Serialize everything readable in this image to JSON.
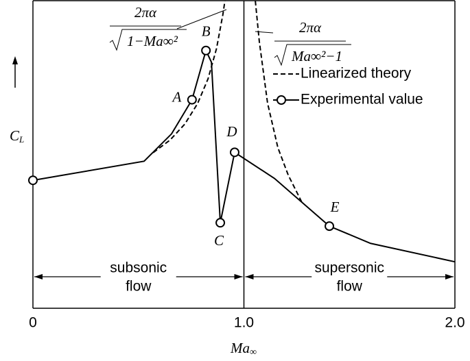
{
  "chart_data": {
    "type": "line",
    "x_label": {
      "main": "Ma",
      "sub": "∞"
    },
    "y_label": {
      "main": "C",
      "sub": "L"
    },
    "xlim": [
      0,
      2
    ],
    "xticks": [
      0,
      {
        "value": 1,
        "label": "1.0"
      },
      {
        "value": 2,
        "label": "2.0"
      }
    ],
    "ylim": [
      0,
      10
    ],
    "vlines": [
      1
    ],
    "legend": "upper right",
    "series": [
      {
        "name": "Linearized theory",
        "color": "#000000",
        "dash": true,
        "x": [
          0.57,
          0.65,
          0.72,
          0.78,
          0.83,
          0.87,
          0.9,
          0.91,
          null,
          1.054,
          1.073,
          1.112,
          1.161,
          1.21,
          1.275
        ],
        "values": [
          5.06,
          5.47,
          5.99,
          6.65,
          7.46,
          8.44,
          9.54,
          10,
          null,
          10,
          8.67,
          6.67,
          5.22,
          4.33,
          3.44
        ]
      },
      {
        "name": "Experimental value",
        "color": "#000000",
        "dash": false,
        "x": [
          0,
          0.527,
          0.657,
          0.754,
          0.82,
          0.846,
          0.888,
          0.956,
          1.145,
          1.405,
          1.6,
          2
        ],
        "values": [
          4.16,
          4.78,
          5.67,
          6.78,
          8.38,
          8.0,
          2.78,
          5.07,
          4.22,
          2.67,
          2.11,
          1.51
        ],
        "markers": [
          true,
          false,
          false,
          true,
          true,
          false,
          true,
          true,
          false,
          true,
          false,
          false
        ],
        "point_labels": [
          null,
          null,
          null,
          "A",
          "B",
          null,
          "C",
          "D",
          null,
          "E",
          null,
          null
        ]
      }
    ],
    "formulas": [
      {
        "numerator": "2πα",
        "denominator": "1−Ma∞²"
      },
      {
        "numerator": "2πα",
        "denominator": "Ma∞²−1"
      }
    ],
    "regions": [
      {
        "lines": [
          "subsonic",
          "flow"
        ],
        "x": [
          0,
          1
        ]
      },
      {
        "lines": [
          "supersonic",
          "flow"
        ],
        "x": [
          1,
          2
        ]
      }
    ]
  }
}
